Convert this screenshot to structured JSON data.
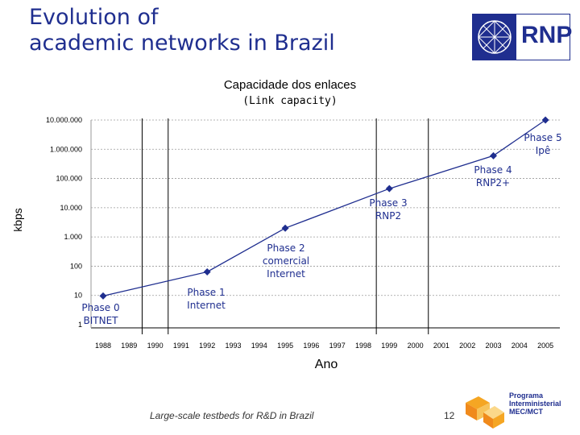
{
  "slide": {
    "title_line1": "Evolution of",
    "title_line2": "academic networks in Brazil",
    "logo_text": "RNP",
    "footer": "Large-scale testbeds for R&D in Brazil",
    "page_number": "12",
    "program_logo_lines": [
      "Programa",
      "Interministerial",
      "MEC/MCT"
    ]
  },
  "colors": {
    "title": "#1f2e8f",
    "series": "#1f2e8f",
    "annotation": "#1f2e8f"
  },
  "chart_data": {
    "type": "line",
    "title": "Capacidade dos enlaces",
    "subtitle": "(Link capacity)",
    "xlabel": "Ano",
    "ylabel": "kbps",
    "y_scale": "log",
    "ylim": [
      1,
      10000000
    ],
    "y_ticks": [
      {
        "value": 1,
        "label": "1"
      },
      {
        "value": 10,
        "label": "10"
      },
      {
        "value": 100,
        "label": "100"
      },
      {
        "value": 1000,
        "label": "1.000"
      },
      {
        "value": 10000,
        "label": "10.000"
      },
      {
        "value": 100000,
        "label": "100.000"
      },
      {
        "value": 1000000,
        "label": "1.000.000"
      },
      {
        "value": 10000000,
        "label": "10.000.000"
      }
    ],
    "categories": [
      "1988",
      "1989",
      "1990",
      "1991",
      "1992",
      "1993",
      "1994",
      "1995",
      "1996",
      "1997",
      "1998",
      "1999",
      "2000",
      "2001",
      "2002",
      "2003",
      "2004",
      "2005"
    ],
    "grid": true,
    "series": [
      {
        "points": [
          {
            "x": "1988",
            "y": 9.6
          },
          {
            "x": "1992",
            "y": 64
          },
          {
            "x": "1995",
            "y": 2000
          },
          {
            "x": "1999",
            "y": 45000
          },
          {
            "x": "2003",
            "y": 600000
          },
          {
            "x": "2005",
            "y": 10000000
          }
        ]
      }
    ],
    "phase_dividers": [
      "1989.5",
      "1990.5",
      "1998.5",
      "2000.5"
    ],
    "annotations": [
      {
        "lines": [
          "Phase 0",
          "BITNET"
        ],
        "x": "1988"
      },
      {
        "lines": [
          "Phase 1",
          "Internet"
        ],
        "x": "1992"
      },
      {
        "lines": [
          "Phase 2",
          "comercial",
          "Internet"
        ],
        "x": "1995"
      },
      {
        "lines": [
          "Phase 3",
          "RNP2"
        ],
        "x": "1999"
      },
      {
        "lines": [
          "Phase 4",
          "RNP2+"
        ],
        "x": "2003"
      },
      {
        "lines": [
          "Phase 5",
          "Ipê"
        ],
        "x": "2005"
      }
    ]
  }
}
